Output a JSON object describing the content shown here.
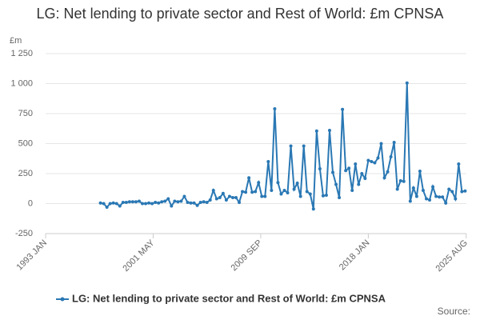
{
  "chart_data": {
    "type": "line",
    "title": "LG: Net lending to private sector and Rest of World: £m CPNSA",
    "y_unit": "£m",
    "source": "Source:",
    "x": [
      1997.25,
      1997.5,
      1997.75,
      1998,
      1998.25,
      1998.5,
      1998.75,
      1999,
      1999.25,
      1999.5,
      1999.75,
      2000,
      2000.25,
      2000.5,
      2000.75,
      2001,
      2001.25,
      2001.5,
      2001.75,
      2002,
      2002.25,
      2002.5,
      2002.75,
      2003,
      2003.25,
      2003.5,
      2003.75,
      2004,
      2004.25,
      2004.5,
      2004.75,
      2005,
      2005.25,
      2005.5,
      2005.75,
      2006,
      2006.25,
      2006.5,
      2006.75,
      2007,
      2007.25,
      2007.5,
      2007.75,
      2008,
      2008.25,
      2008.5,
      2008.75,
      2009,
      2009.25,
      2009.5,
      2009.75,
      2010,
      2010.25,
      2010.5,
      2010.75,
      2011,
      2011.25,
      2011.5,
      2011.75,
      2012,
      2012.25,
      2012.5,
      2012.75,
      2013,
      2013.25,
      2013.5,
      2013.75,
      2014,
      2014.25,
      2014.5,
      2014.75,
      2015,
      2015.25,
      2015.5,
      2015.75,
      2016,
      2016.25,
      2016.5,
      2016.75,
      2017,
      2017.25,
      2017.5,
      2017.75,
      2018,
      2018.25,
      2018.5,
      2018.75,
      2019,
      2019.25,
      2019.5,
      2019.75,
      2020,
      2020.25,
      2020.5,
      2020.75,
      2021,
      2021.25,
      2021.5,
      2021.75,
      2022,
      2022.25,
      2022.5,
      2022.75,
      2023,
      2023.25,
      2023.5,
      2023.75,
      2024,
      2024.25,
      2024.5,
      2024.75,
      2025,
      2025.25,
      2025.5
    ],
    "series": [
      {
        "name": "LG: Net lending to private sector and Rest of World: £m CPNSA",
        "color": "#2a78b4",
        "values": [
          5,
          0,
          -30,
          0,
          5,
          0,
          -20,
          10,
          10,
          15,
          15,
          15,
          20,
          0,
          0,
          5,
          0,
          10,
          5,
          15,
          20,
          40,
          -20,
          20,
          15,
          20,
          60,
          10,
          5,
          5,
          -15,
          10,
          15,
          10,
          30,
          110,
          40,
          50,
          85,
          30,
          60,
          50,
          50,
          10,
          100,
          95,
          215,
          95,
          100,
          175,
          60,
          60,
          350,
          110,
          790,
          175,
          80,
          110,
          90,
          480,
          120,
          170,
          60,
          480,
          100,
          80,
          -45,
          605,
          290,
          65,
          70,
          610,
          260,
          160,
          50,
          785,
          275,
          295,
          110,
          330,
          160,
          250,
          210,
          360,
          350,
          340,
          380,
          500,
          215,
          265,
          390,
          510,
          120,
          190,
          185,
          1005,
          20,
          130,
          60,
          270,
          110,
          40,
          30,
          140,
          60,
          55,
          55,
          5,
          120,
          100,
          40,
          330,
          100,
          105
        ]
      }
    ],
    "xlim": [
      1993,
      2025.6
    ],
    "xticks": [
      {
        "value": 1993,
        "label": "1993 JAN"
      },
      {
        "value": 2001.333,
        "label": "2001 MAY"
      },
      {
        "value": 2009.667,
        "label": "2009 SEP"
      },
      {
        "value": 2018,
        "label": "2018 JAN"
      },
      {
        "value": 2025.583,
        "label": "2025 AUG"
      }
    ],
    "ylim": [
      -250,
      1250
    ],
    "yticks": [
      -250,
      0,
      250,
      500,
      750,
      {
        "value": 1000,
        "label": "1 000"
      },
      {
        "value": 1250,
        "label": "1 250"
      }
    ],
    "grid": true
  }
}
